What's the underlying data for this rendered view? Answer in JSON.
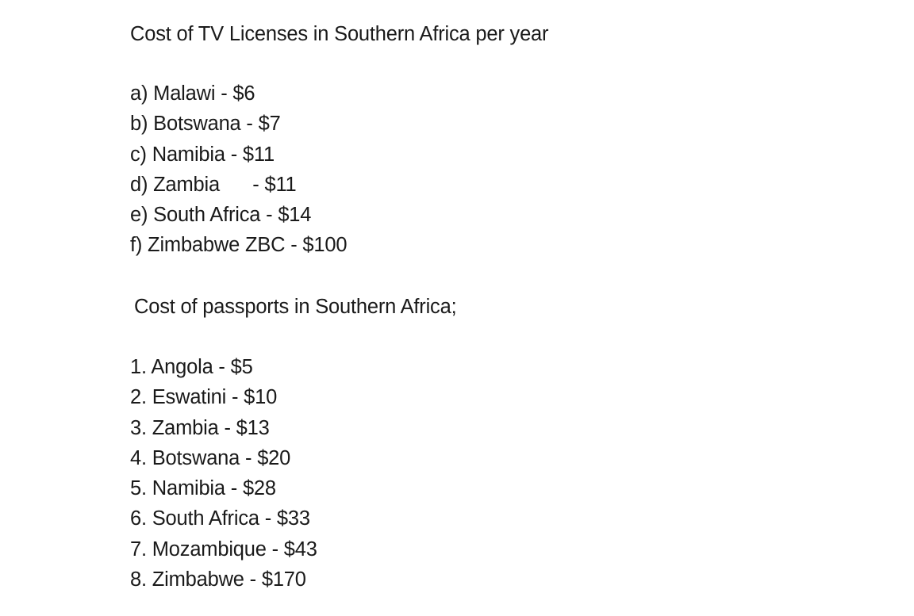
{
  "tv_licenses": {
    "heading": "Cost of TV Licenses in Southern Africa per year",
    "items": [
      "a) Malawi - $6",
      "b) Botswana - $7",
      "c) Namibia - $11",
      "d) Zambia      - $11",
      "e) South Africa - $14",
      "f) Zimbabwe ZBC - $100"
    ]
  },
  "passports": {
    "heading": "Cost of passports in Southern Africa;",
    "items": [
      "1. Angola - $5",
      "2. Eswatini - $10",
      "3. Zambia - $13",
      "4. Botswana - $20",
      "5. Namibia - $28",
      "6. South Africa - $33",
      "7. Mozambique - $43",
      "8. Zimbabwe - $170"
    ]
  }
}
